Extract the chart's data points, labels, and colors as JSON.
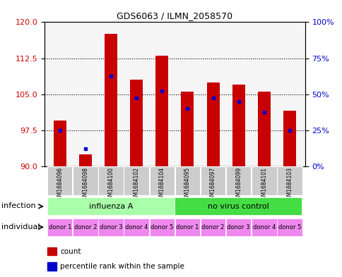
{
  "title": "GDS6063 / ILMN_2058570",
  "samples": [
    "GSM1684096",
    "GSM1684098",
    "GSM1684100",
    "GSM1684102",
    "GSM1684104",
    "GSM1684095",
    "GSM1684097",
    "GSM1684099",
    "GSM1684101",
    "GSM1684103"
  ],
  "red_bar_tops": [
    99.5,
    92.5,
    117.5,
    108.0,
    113.0,
    105.5,
    107.5,
    107.0,
    105.5,
    101.5
  ],
  "blue_marker_pct": [
    25.0,
    12.0,
    62.5,
    47.5,
    52.5,
    40.0,
    47.5,
    45.0,
    37.5,
    25.0
  ],
  "ylim_left": [
    90,
    120
  ],
  "ylim_right": [
    0,
    100
  ],
  "yticks_left": [
    90,
    97.5,
    105,
    112.5,
    120
  ],
  "yticks_right": [
    0,
    25,
    50,
    75,
    100
  ],
  "baseline": 90,
  "red_color": "#C80000",
  "blue_color": "#0000CC",
  "bar_width": 0.5,
  "left_tick_color": "#CC0000",
  "right_tick_color": "#0000CC",
  "sample_bg_color": "#CCCCCC",
  "infection_colors": [
    "#AAFFAA",
    "#44DD44"
  ],
  "infection_labels": [
    "influenza A",
    "no virus control"
  ],
  "infection_ranges": [
    [
      0,
      5
    ],
    [
      5,
      10
    ]
  ],
  "donor_labels": [
    "donor 1",
    "donor 2",
    "donor 3",
    "donor 4",
    "donor 5",
    "donor 1",
    "donor 2",
    "donor 3",
    "donor 4",
    "donor 5"
  ],
  "individual_color": "#EE88EE",
  "n_samples": 10
}
